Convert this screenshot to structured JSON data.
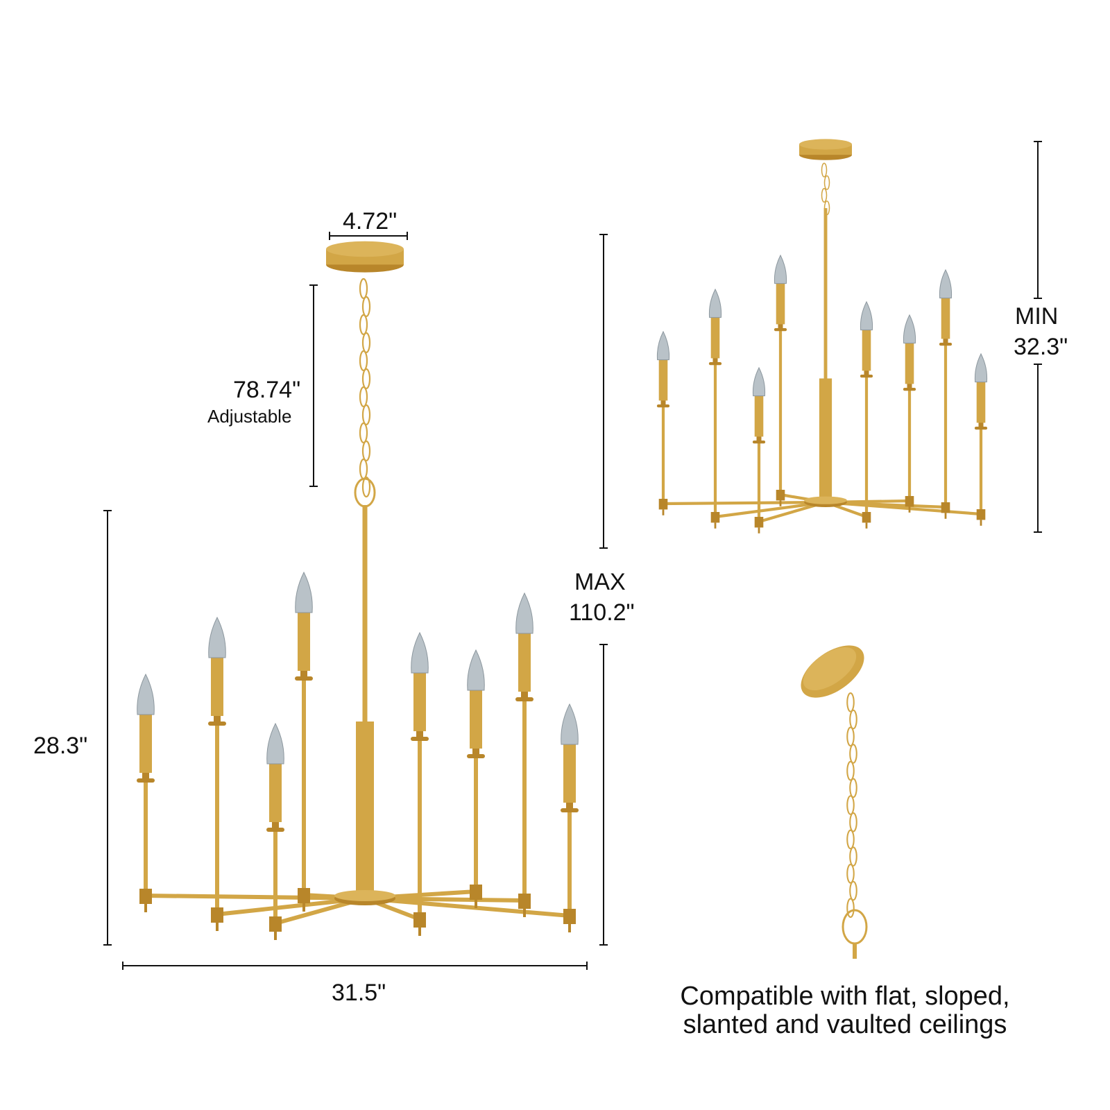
{
  "dimensions": {
    "canopy_width": "4.72\"",
    "chain_length": "78.74\"",
    "chain_note": "Adjustable",
    "body_height": "28.3\"",
    "max_label": "MAX",
    "max_height": "110.2\"",
    "width": "31.5\"",
    "min_label": "MIN",
    "min_height": "32.3\""
  },
  "caption": {
    "line1": "Compatible with flat, sloped,",
    "line2": "slanted and vaulted ceilings"
  },
  "colors": {
    "brass": "#d2a646",
    "brass_dark": "#b8862a",
    "bulb": "#b9c2c8",
    "dimension_line": "#111111"
  },
  "product": {
    "lights": 8
  }
}
